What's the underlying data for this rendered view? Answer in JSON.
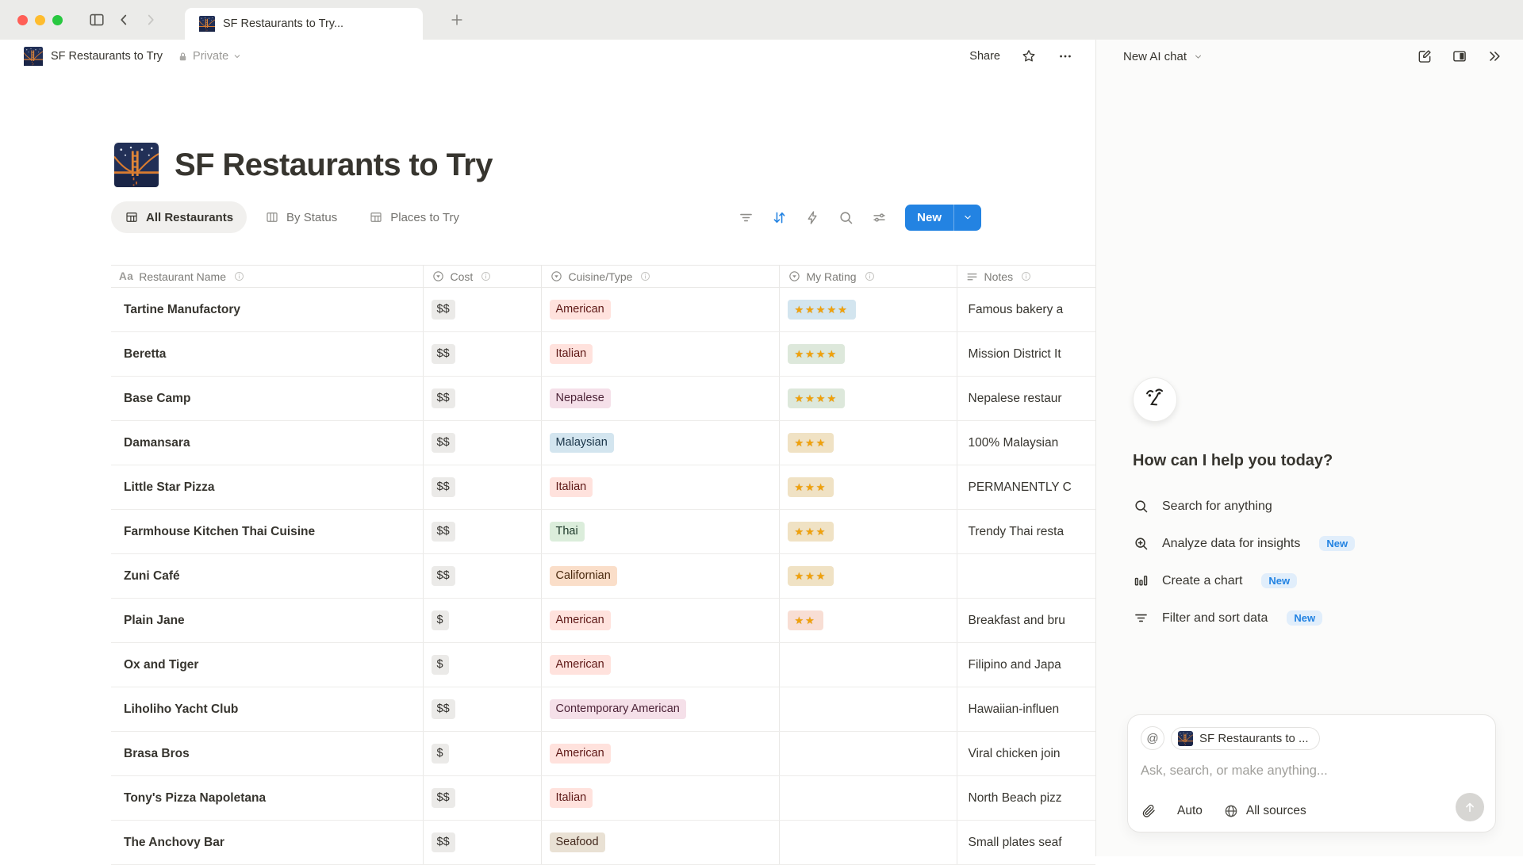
{
  "window": {
    "tab_title": "SF Restaurants to Try..."
  },
  "breadcrumb": {
    "title": "SF Restaurants to Try",
    "privacy": "Private"
  },
  "topbar": {
    "share": "Share"
  },
  "page": {
    "title": "SF Restaurants to Try"
  },
  "views": [
    {
      "label": "All Restaurants",
      "icon": "table",
      "active": true
    },
    {
      "label": "By Status",
      "icon": "board",
      "active": false
    },
    {
      "label": "Places to Try",
      "icon": "table",
      "active": false
    }
  ],
  "toolbar": {
    "new_label": "New"
  },
  "table": {
    "columns": [
      {
        "label": "Restaurant Name",
        "icon": "text"
      },
      {
        "label": "Cost",
        "icon": "select"
      },
      {
        "label": "Cuisine/Type",
        "icon": "select"
      },
      {
        "label": "My Rating",
        "icon": "select"
      },
      {
        "label": "Notes",
        "icon": "notes"
      }
    ],
    "rows": [
      {
        "name": "Tartine Manufactory",
        "cost": "$$",
        "cuisine": "American",
        "cuisine_color": "red",
        "stars": 5,
        "rating_color": "5",
        "notes": "Famous bakery a"
      },
      {
        "name": "Beretta",
        "cost": "$$",
        "cuisine": "Italian",
        "cuisine_color": "red",
        "stars": 4,
        "rating_color": "4",
        "notes": "Mission District It"
      },
      {
        "name": "Base Camp",
        "cost": "$$",
        "cuisine": "Nepalese",
        "cuisine_color": "pink",
        "stars": 4,
        "rating_color": "4",
        "notes": "Nepalese restaur"
      },
      {
        "name": "Damansara",
        "cost": "$$",
        "cuisine": "Malaysian",
        "cuisine_color": "blue",
        "stars": 3,
        "rating_color": "3",
        "notes": "100% Malaysian"
      },
      {
        "name": "Little Star Pizza",
        "cost": "$$",
        "cuisine": "Italian",
        "cuisine_color": "red",
        "stars": 3,
        "rating_color": "3",
        "notes": "PERMANENTLY C"
      },
      {
        "name": "Farmhouse Kitchen Thai Cuisine",
        "cost": "$$",
        "cuisine": "Thai",
        "cuisine_color": "green",
        "stars": 3,
        "rating_color": "3",
        "notes": "Trendy Thai resta"
      },
      {
        "name": "Zuni Café",
        "cost": "$$",
        "cuisine": "Californian",
        "cuisine_color": "orange",
        "stars": 3,
        "rating_color": "3",
        "notes": ""
      },
      {
        "name": "Plain Jane",
        "cost": "$",
        "cuisine": "American",
        "cuisine_color": "red",
        "stars": 2,
        "rating_color": "2",
        "notes": "Breakfast and bru"
      },
      {
        "name": "Ox and Tiger",
        "cost": "$",
        "cuisine": "American",
        "cuisine_color": "red",
        "stars": 0,
        "rating_color": "",
        "notes": "Filipino and Japa"
      },
      {
        "name": "Liholiho Yacht Club",
        "cost": "$$",
        "cuisine": "Contemporary American",
        "cuisine_color": "pink",
        "stars": 0,
        "rating_color": "",
        "notes": "Hawaiian-influen"
      },
      {
        "name": "Brasa Bros",
        "cost": "$",
        "cuisine": "American",
        "cuisine_color": "red",
        "stars": 0,
        "rating_color": "",
        "notes": "Viral chicken join"
      },
      {
        "name": "Tony's Pizza Napoletana",
        "cost": "$$",
        "cuisine": "Italian",
        "cuisine_color": "red",
        "stars": 0,
        "rating_color": "",
        "notes": "North Beach pizz"
      },
      {
        "name": "The Anchovy Bar",
        "cost": "$$",
        "cuisine": "Seafood",
        "cuisine_color": "brown",
        "stars": 0,
        "rating_color": "",
        "notes": "Small plates seaf"
      }
    ]
  },
  "colors": {
    "accent": "#2383e2",
    "cost_bg": "#ebeae8",
    "cost_text": "#32302c",
    "tags": {
      "red": {
        "bg": "#ffe2dd",
        "text": "#5d1715"
      },
      "pink": {
        "bg": "#f5e0e9",
        "text": "#4c2337"
      },
      "blue": {
        "bg": "#d3e5ef",
        "text": "#183347"
      },
      "green": {
        "bg": "#dbeddb",
        "text": "#1c3829"
      },
      "orange": {
        "bg": "#fadec9",
        "text": "#49290e"
      },
      "brown": {
        "bg": "#e9e1d4",
        "text": "#442a1e"
      }
    },
    "ratings": {
      "5": "#d3e5ef",
      "4": "#dde8db",
      "3": "#f0e2c4",
      "2": "#f8ded4"
    }
  },
  "ai": {
    "header": "New AI chat",
    "greeting": "How can I help you today?",
    "badge": "New",
    "options": [
      {
        "label": "Search for anything",
        "icon": "search",
        "badge": false
      },
      {
        "label": "Analyze data for insights",
        "icon": "search-plus",
        "badge": true
      },
      {
        "label": "Create a chart",
        "icon": "chart",
        "badge": true
      },
      {
        "label": "Filter and sort data",
        "icon": "filter",
        "badge": true
      }
    ],
    "composer": {
      "context": "SF Restaurants to ...",
      "placeholder": "Ask, search, or make anything...",
      "auto": "Auto",
      "sources": "All sources"
    }
  }
}
